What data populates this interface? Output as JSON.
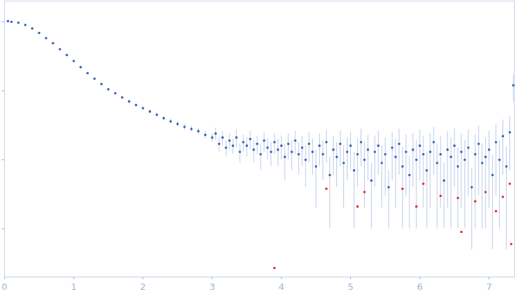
{
  "chart_data": {
    "type": "scatter",
    "log": "y",
    "tick_labels": "x",
    "grid": false,
    "xlim": [
      0,
      7.37
    ],
    "xticks": [
      0,
      1,
      2,
      3,
      4,
      5,
      6,
      7
    ],
    "ylim": [
      0.0002,
      2
    ],
    "yticks": [
      0.001,
      0.01,
      0.1,
      1
    ],
    "series": [
      {
        "color": "#3a66b8",
        "marker": "circle",
        "x": [
          0.05,
          0.1,
          0.2,
          0.3,
          0.4,
          0.5,
          0.6,
          0.7,
          0.8,
          0.9,
          1.0,
          1.1,
          1.2,
          1.3,
          1.4,
          1.5,
          1.6,
          1.7,
          1.8,
          1.9,
          2.0,
          2.1,
          2.2,
          2.3,
          2.4,
          2.5,
          2.6,
          2.7,
          2.8,
          2.9,
          3.0,
          3.05,
          3.1,
          3.15,
          3.2,
          3.25,
          3.3,
          3.35,
          3.4,
          3.45,
          3.5,
          3.55,
          3.6,
          3.65,
          3.7,
          3.75,
          3.8,
          3.85,
          3.9,
          3.95,
          4.0,
          4.05,
          4.1,
          4.15,
          4.2,
          4.25,
          4.3,
          4.35,
          4.4,
          4.45,
          4.5,
          4.55,
          4.6,
          4.65,
          4.7,
          4.75,
          4.8,
          4.85,
          4.9,
          4.95,
          5.0,
          5.05,
          5.1,
          5.15,
          5.2,
          5.25,
          5.3,
          5.35,
          5.4,
          5.45,
          5.5,
          5.55,
          5.6,
          5.65,
          5.7,
          5.75,
          5.8,
          5.85,
          5.9,
          5.95,
          6.0,
          6.05,
          6.1,
          6.15,
          6.2,
          6.25,
          6.3,
          6.35,
          6.4,
          6.45,
          6.5,
          6.55,
          6.6,
          6.65,
          6.7,
          6.75,
          6.8,
          6.85,
          6.9,
          6.95,
          7.0,
          7.05,
          7.1,
          7.15,
          7.2,
          7.25,
          7.3,
          7.35
        ],
        "values": [
          1.02,
          1.0,
          0.97,
          0.9,
          0.8,
          0.69,
          0.58,
          0.49,
          0.4,
          0.33,
          0.27,
          0.22,
          0.18,
          0.15,
          0.125,
          0.105,
          0.092,
          0.08,
          0.07,
          0.062,
          0.056,
          0.05,
          0.045,
          0.04,
          0.036,
          0.033,
          0.03,
          0.028,
          0.026,
          0.023,
          0.021,
          0.024,
          0.017,
          0.021,
          0.015,
          0.019,
          0.016,
          0.021,
          0.013,
          0.018,
          0.016,
          0.02,
          0.014,
          0.017,
          0.012,
          0.019,
          0.015,
          0.013,
          0.018,
          0.014,
          0.016,
          0.011,
          0.017,
          0.013,
          0.019,
          0.012,
          0.015,
          0.01,
          0.017,
          0.013,
          0.008,
          0.016,
          0.012,
          0.018,
          0.006,
          0.014,
          0.011,
          0.017,
          0.009,
          0.013,
          0.016,
          0.007,
          0.012,
          0.018,
          0.01,
          0.014,
          0.005,
          0.013,
          0.016,
          0.009,
          0.012,
          0.004,
          0.015,
          0.011,
          0.017,
          0.008,
          0.013,
          0.006,
          0.014,
          0.01,
          0.016,
          0.012,
          0.007,
          0.013,
          0.018,
          0.009,
          0.012,
          0.005,
          0.014,
          0.011,
          0.016,
          0.008,
          0.013,
          0.01,
          0.015,
          0.004,
          0.012,
          0.017,
          0.009,
          0.011,
          0.014,
          0.006,
          0.018,
          0.01,
          0.022,
          0.008,
          0.025,
          0.12
        ],
        "errors": [
          0.05,
          0.01,
          0.008,
          0.007,
          0.006,
          0.005,
          0.005,
          0.004,
          0.004,
          0.003,
          0.003,
          0.003,
          0.003,
          0.003,
          0.003,
          0.003,
          0.003,
          0.003,
          0.003,
          0.003,
          0.003,
          0.003,
          0.003,
          0.003,
          0.003,
          0.003,
          0.003,
          0.003,
          0.003,
          0.003,
          0.003,
          0.005,
          0.004,
          0.005,
          0.004,
          0.005,
          0.004,
          0.006,
          0.004,
          0.005,
          0.005,
          0.006,
          0.005,
          0.005,
          0.005,
          0.006,
          0.005,
          0.005,
          0.006,
          0.006,
          0.006,
          0.006,
          0.007,
          0.006,
          0.007,
          0.006,
          0.007,
          0.006,
          0.008,
          0.007,
          0.006,
          0.008,
          0.007,
          0.009,
          0.005,
          0.008,
          0.007,
          0.009,
          0.007,
          0.008,
          0.009,
          0.006,
          0.008,
          0.01,
          0.008,
          0.009,
          0.004,
          0.009,
          0.01,
          0.007,
          0.009,
          0.003,
          0.01,
          0.009,
          0.011,
          0.007,
          0.01,
          0.005,
          0.01,
          0.009,
          0.011,
          0.01,
          0.006,
          0.011,
          0.012,
          0.008,
          0.01,
          0.004,
          0.012,
          0.01,
          0.012,
          0.007,
          0.011,
          0.009,
          0.012,
          0.0035,
          0.011,
          0.014,
          0.008,
          0.01,
          0.012,
          0.0055,
          0.015,
          0.009,
          0.016,
          0.0075,
          0.018,
          0.05
        ]
      },
      {
        "color": "#e03030",
        "marker": "circle",
        "x": [
          3.9,
          4.65,
          5.1,
          5.2,
          5.75,
          5.95,
          6.05,
          6.3,
          6.55,
          6.6,
          6.8,
          6.95,
          7.1,
          7.2,
          7.3,
          7.32
        ],
        "values": [
          0.00027,
          0.0038,
          0.0021,
          0.0034,
          0.0038,
          0.0021,
          0.0045,
          0.003,
          0.0028,
          0.0009,
          0.0025,
          0.0034,
          0.0018,
          0.0029,
          0.0045,
          0.0006
        ]
      }
    ]
  }
}
